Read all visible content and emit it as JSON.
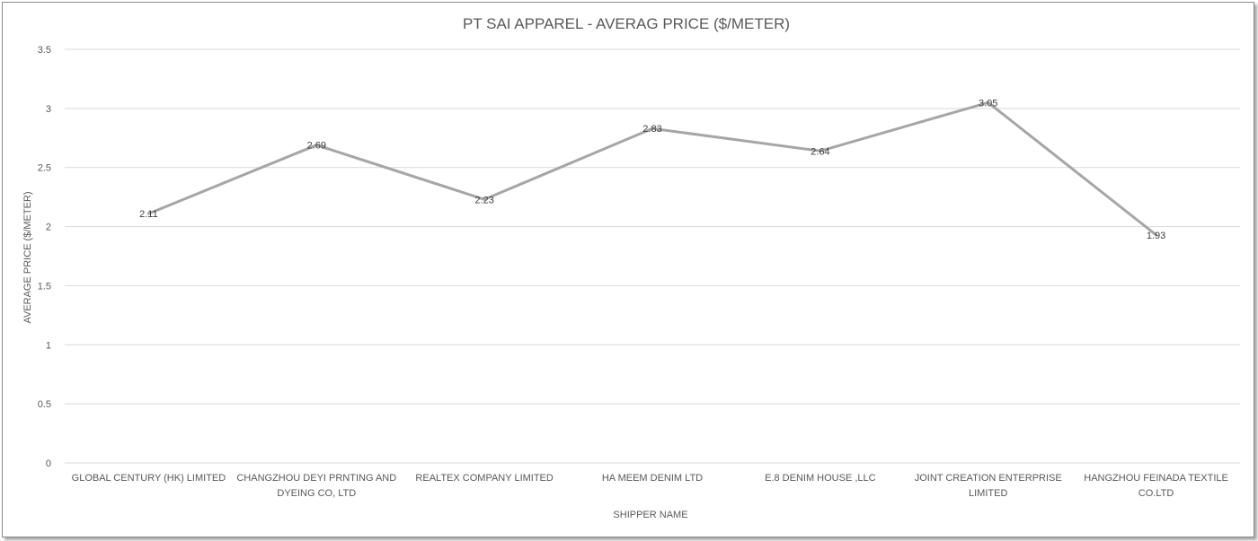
{
  "chart_data": {
    "type": "line",
    "title": "PT SAI APPAREL - AVERAG PRICE ($/METER)",
    "xlabel": "SHIPPER NAME",
    "ylabel": "AVERAGE  PRICE  ($/METER)",
    "categories": [
      [
        "GLOBAL CENTURY (HK) LIMITED"
      ],
      [
        "CHANGZHOU DEYI PRNTING AND",
        "DYEING CO, LTD"
      ],
      [
        "REALTEX COMPANY LIMITED"
      ],
      [
        "HA MEEM DENIM LTD"
      ],
      [
        "E.8 DENIM HOUSE ,LLC"
      ],
      [
        "JOINT CREATION ENTERPRISE",
        "LIMITED"
      ],
      [
        "HANGZHOU FEINADA TEXTILE",
        "CO.LTD"
      ]
    ],
    "series": [
      {
        "values": [
          2.11,
          2.69,
          2.23,
          2.83,
          2.64,
          3.05,
          1.93
        ],
        "color": "#a6a6a6"
      }
    ],
    "data_labels": [
      "2.11",
      "2.69",
      "2.23",
      "2.83",
      "2.64",
      "3.05",
      "1.93"
    ],
    "yticks": [
      "0",
      "0.5",
      "1",
      "1.5",
      "2",
      "2.5",
      "3",
      "3.5"
    ],
    "ylim": [
      0,
      3.5
    ],
    "grid": true,
    "legend": "none"
  }
}
